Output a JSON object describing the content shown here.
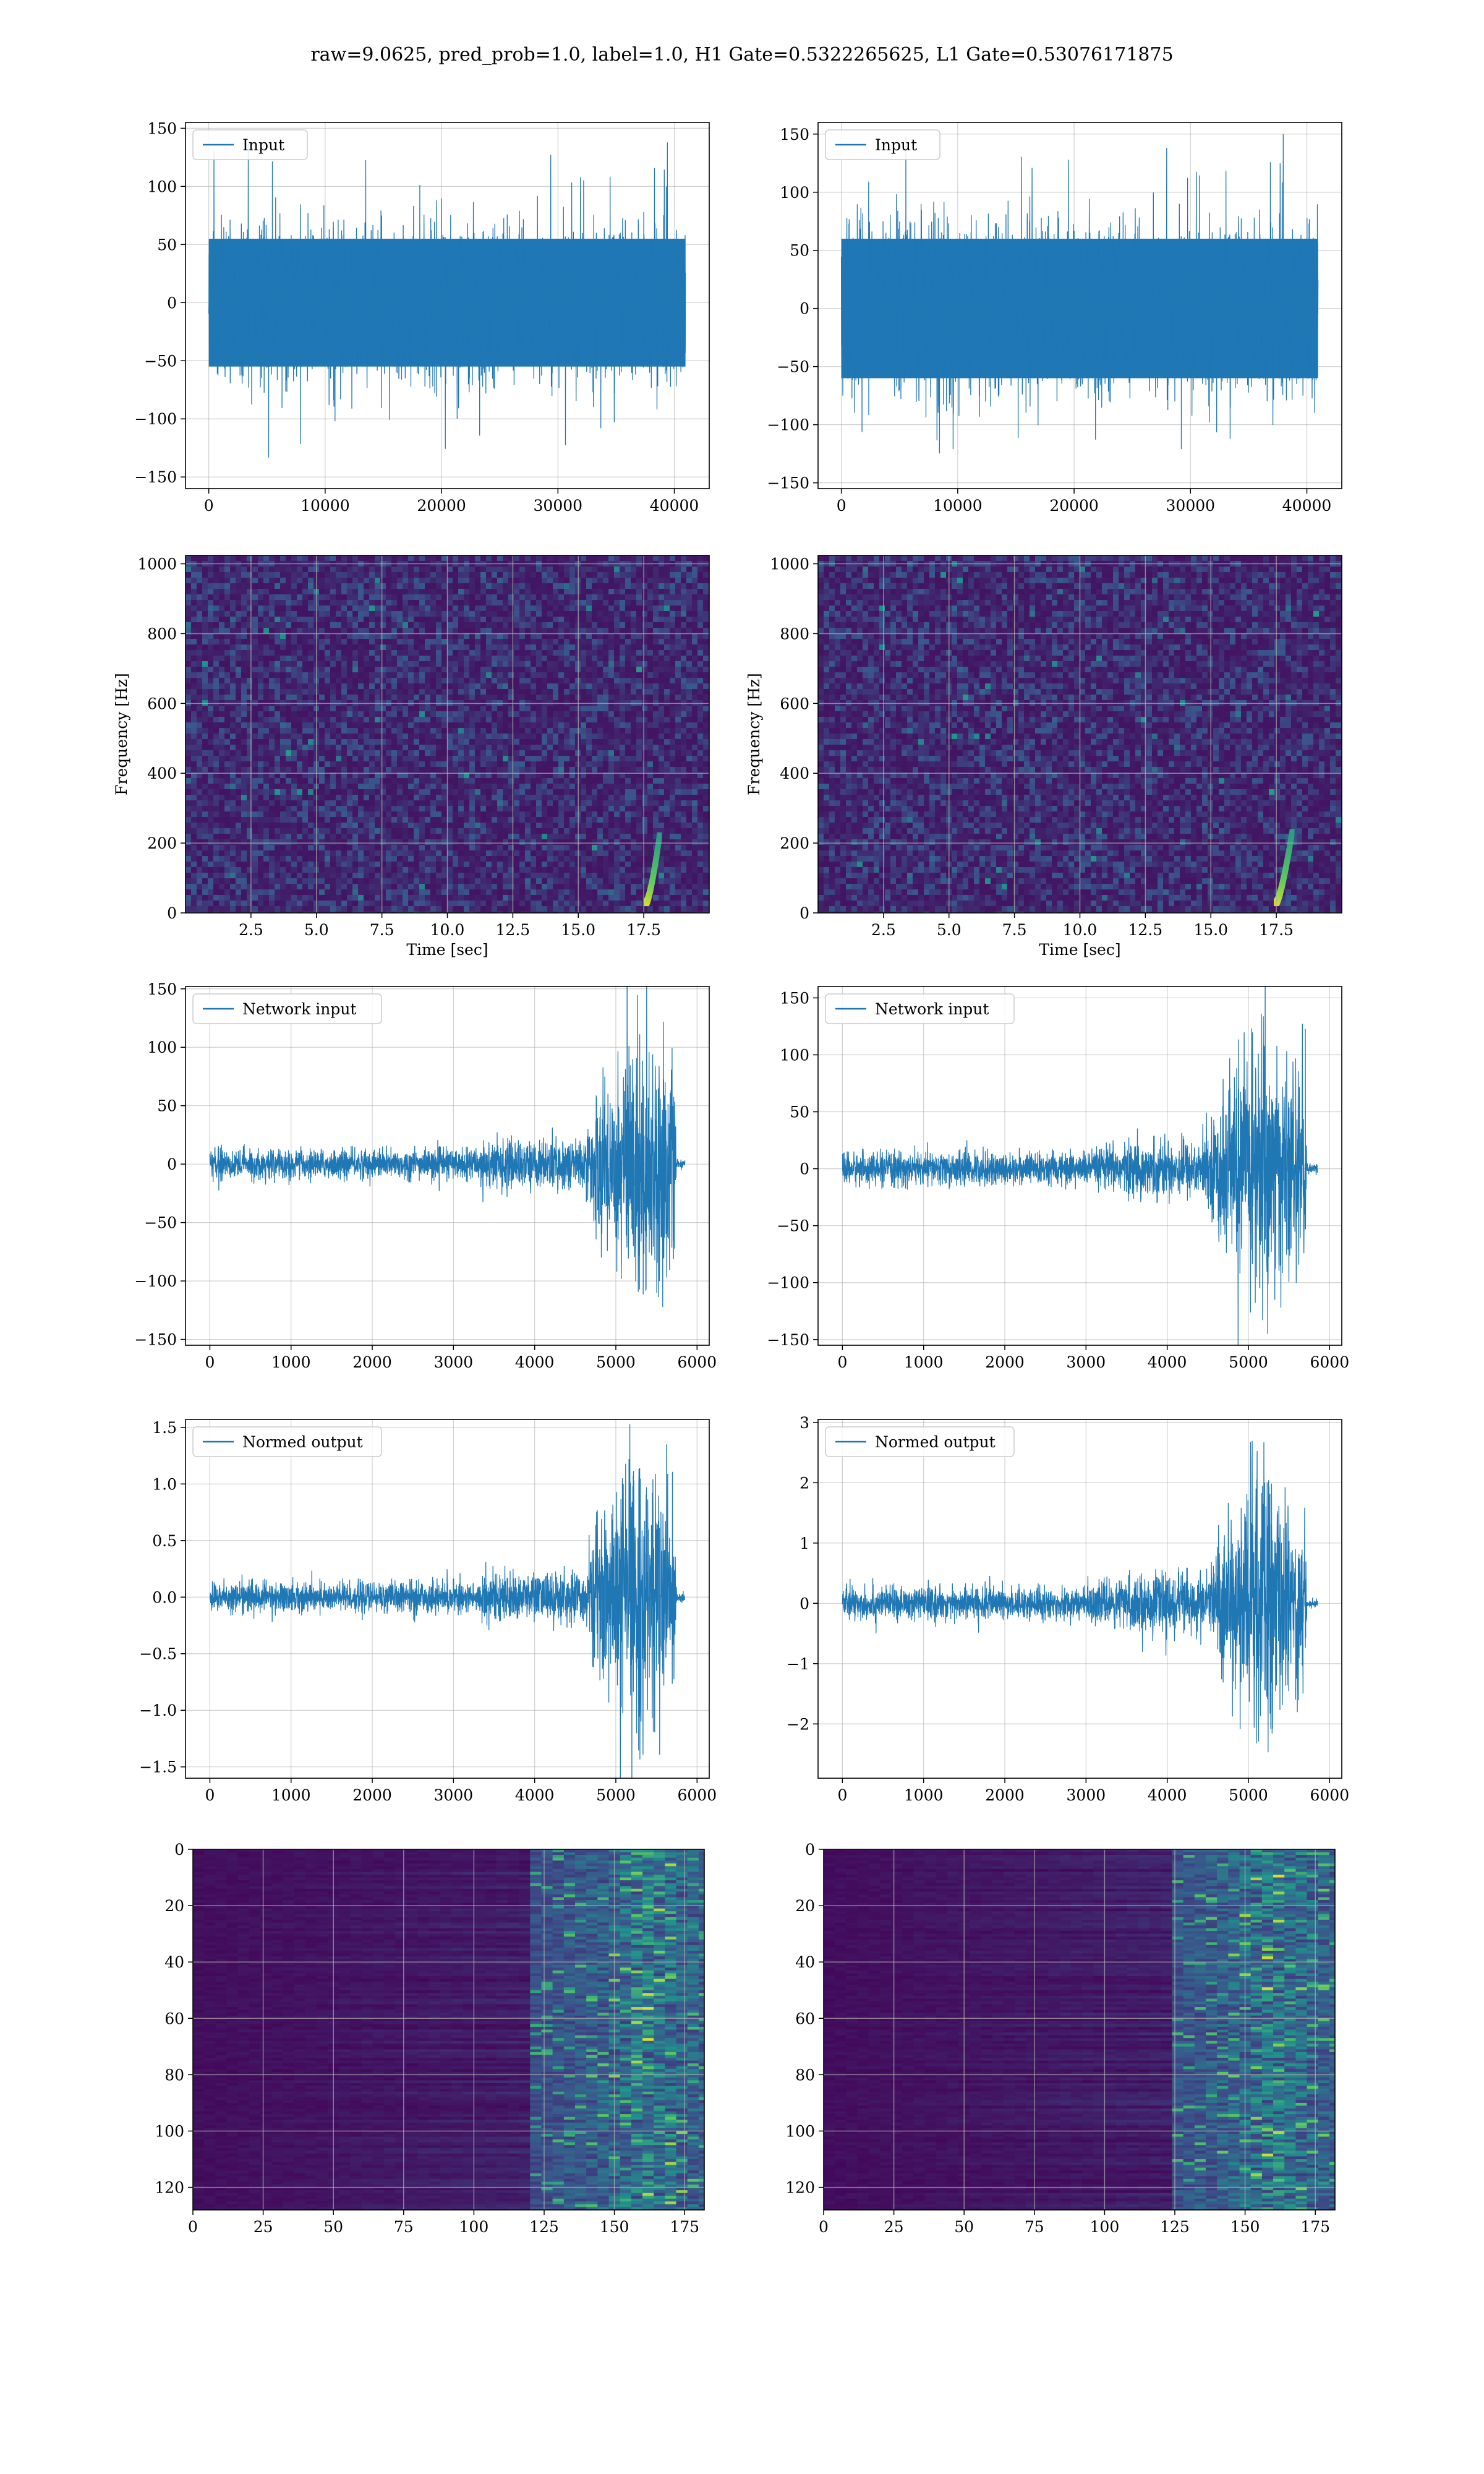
{
  "figure": {
    "title": "raw=9.0625, pred_prob=1.0, label=1.0, H1 Gate=0.5322265625, L1 Gate=0.53076171875"
  },
  "colors": {
    "line": "#1f77b4",
    "grid": "#b0b0b0",
    "viridis_low": "#440154",
    "viridis_mid": "#21918c",
    "viridis_high": "#fde725"
  },
  "chart_data": [
    {
      "id": "h1-input",
      "type": "line",
      "legend": "Input",
      "legend_loc": "upper-left",
      "xlim": [
        -2000,
        43000
      ],
      "ylim": [
        -160,
        155
      ],
      "xticks": [
        0,
        10000,
        20000,
        30000,
        40000
      ],
      "yticks": [
        -150,
        -100,
        -50,
        0,
        50,
        100,
        150
      ],
      "x": [
        0,
        40960
      ],
      "series_n": 40960,
      "band_p5": -55,
      "band_p95": 55,
      "noise_max": 138,
      "noise_min": -145,
      "xlabel": "",
      "ylabel": "",
      "grid": true
    },
    {
      "id": "l1-input",
      "type": "line",
      "legend": "Input",
      "legend_loc": "upper-left",
      "xlim": [
        -2000,
        43000
      ],
      "ylim": [
        -155,
        160
      ],
      "xticks": [
        0,
        10000,
        20000,
        30000,
        40000
      ],
      "yticks": [
        -150,
        -100,
        -50,
        0,
        50,
        100,
        150
      ],
      "x": [
        0,
        40960
      ],
      "series_n": 40960,
      "band_p5": -60,
      "band_p95": 60,
      "noise_max": 150,
      "noise_min": -143,
      "xlabel": "",
      "ylabel": "",
      "grid": true
    },
    {
      "id": "h1-spectrogram",
      "type": "heatmap",
      "colormap": "viridis",
      "xlim": [
        0,
        20
      ],
      "ylim": [
        0,
        1024
      ],
      "xticks": [
        2.5,
        5.0,
        7.5,
        10.0,
        12.5,
        15.0,
        17.5
      ],
      "xtick_labels": [
        "2.5",
        "5.0",
        "7.5",
        "10.0",
        "12.5",
        "15.0",
        "17.5"
      ],
      "yticks": [
        0,
        200,
        400,
        600,
        800,
        1000
      ],
      "xlabel": "Time [sec]",
      "ylabel": "Frequency [Hz]",
      "grid": true,
      "chirp": {
        "t_start": 17.6,
        "t_end": 18.1,
        "f_start": 30,
        "f_end": 220
      }
    },
    {
      "id": "l1-spectrogram",
      "type": "heatmap",
      "colormap": "viridis",
      "xlim": [
        0,
        20
      ],
      "ylim": [
        0,
        1024
      ],
      "xticks": [
        2.5,
        5.0,
        7.5,
        10.0,
        12.5,
        15.0,
        17.5
      ],
      "xtick_labels": [
        "2.5",
        "5.0",
        "7.5",
        "10.0",
        "12.5",
        "15.0",
        "17.5"
      ],
      "yticks": [
        0,
        200,
        400,
        600,
        800,
        1000
      ],
      "xlabel": "Time [sec]",
      "ylabel": "Frequency [Hz]",
      "grid": true,
      "chirp": {
        "t_start": 17.5,
        "t_end": 18.1,
        "f_start": 30,
        "f_end": 230
      }
    },
    {
      "id": "h1-network-input",
      "type": "line",
      "legend": "Network input",
      "legend_loc": "upper-left",
      "xlim": [
        -300,
        6150
      ],
      "ylim": [
        -155,
        152
      ],
      "xticks": [
        0,
        1000,
        2000,
        3000,
        4000,
        5000,
        6000
      ],
      "yticks": [
        -150,
        -100,
        -50,
        0,
        50,
        100,
        150
      ],
      "x": [
        0,
        5850
      ],
      "signal_end": 5750,
      "envelope": [
        [
          0,
          14
        ],
        [
          3300,
          14
        ],
        [
          3400,
          28
        ],
        [
          3500,
          22
        ],
        [
          4600,
          24
        ],
        [
          4800,
          70
        ],
        [
          5000,
          95
        ],
        [
          5200,
          140
        ],
        [
          5400,
          120
        ],
        [
          5700,
          105
        ],
        [
          5750,
          4
        ],
        [
          5850,
          4
        ]
      ],
      "xlabel": "",
      "ylabel": "",
      "grid": true
    },
    {
      "id": "l1-network-input",
      "type": "line",
      "legend": "Network input",
      "legend_loc": "upper-left",
      "xlim": [
        -300,
        6150
      ],
      "ylim": [
        -155,
        160
      ],
      "xticks": [
        0,
        1000,
        2000,
        3000,
        4000,
        5000,
        6000
      ],
      "yticks": [
        -150,
        -100,
        -50,
        0,
        50,
        100,
        150
      ],
      "x": [
        0,
        5850
      ],
      "signal_end": 5720,
      "envelope": [
        [
          0,
          16
        ],
        [
          3000,
          16
        ],
        [
          3500,
          26
        ],
        [
          4500,
          30
        ],
        [
          4700,
          80
        ],
        [
          5000,
          115
        ],
        [
          5200,
          150
        ],
        [
          5400,
          100
        ],
        [
          5700,
          95
        ],
        [
          5720,
          5
        ],
        [
          5850,
          5
        ]
      ],
      "xlabel": "",
      "ylabel": "",
      "grid": true
    },
    {
      "id": "h1-normed-output",
      "type": "line",
      "legend": "Normed output",
      "legend_loc": "upper-left",
      "xlim": [
        -300,
        6150
      ],
      "ylim": [
        -1.6,
        1.57
      ],
      "xticks": [
        0,
        1000,
        2000,
        3000,
        4000,
        5000,
        6000
      ],
      "yticks": [
        -1.5,
        -1.0,
        -0.5,
        0.0,
        0.5,
        1.0,
        1.5
      ],
      "ytick_labels": [
        "−1.5",
        "−1.0",
        "−0.5",
        "0.0",
        "0.5",
        "1.0",
        "1.5"
      ],
      "x": [
        0,
        5850
      ],
      "signal_end": 5750,
      "envelope": [
        [
          0,
          0.15
        ],
        [
          3300,
          0.15
        ],
        [
          3400,
          0.3
        ],
        [
          3500,
          0.22
        ],
        [
          4600,
          0.25
        ],
        [
          4800,
          0.75
        ],
        [
          5000,
          1.0
        ],
        [
          5200,
          1.45
        ],
        [
          5400,
          1.2
        ],
        [
          5700,
          1.05
        ],
        [
          5750,
          0.05
        ],
        [
          5850,
          0.05
        ]
      ],
      "xlabel": "",
      "ylabel": "",
      "grid": true
    },
    {
      "id": "l1-normed-output",
      "type": "line",
      "legend": "Normed output",
      "legend_loc": "upper-left",
      "xlim": [
        -300,
        6150
      ],
      "ylim": [
        -2.9,
        3.05
      ],
      "xticks": [
        0,
        1000,
        2000,
        3000,
        4000,
        5000,
        6000
      ],
      "yticks": [
        -2,
        -1,
        0,
        1,
        2,
        3
      ],
      "ytick_labels": [
        "−2",
        "−1",
        "0",
        "1",
        "2",
        "3"
      ],
      "x": [
        0,
        5850
      ],
      "signal_end": 5720,
      "envelope": [
        [
          0,
          0.3
        ],
        [
          3000,
          0.3
        ],
        [
          3500,
          0.5
        ],
        [
          4500,
          0.55
        ],
        [
          4700,
          1.5
        ],
        [
          5000,
          2.1
        ],
        [
          5200,
          2.8
        ],
        [
          5400,
          1.8
        ],
        [
          5700,
          1.7
        ],
        [
          5720,
          0.08
        ],
        [
          5850,
          0.08
        ]
      ],
      "xlabel": "",
      "ylabel": "",
      "grid": true
    },
    {
      "id": "h1-feature-map",
      "type": "heatmap",
      "colormap": "viridis",
      "xlim": [
        0,
        182
      ],
      "ylim": [
        128,
        0
      ],
      "xticks": [
        0,
        25,
        50,
        75,
        100,
        125,
        150,
        175
      ],
      "yticks": [
        0,
        20,
        40,
        60,
        80,
        100,
        120
      ],
      "rows": 128,
      "cols": 182,
      "active_from_col": 120,
      "hot_col": 160,
      "xlabel": "",
      "ylabel": "",
      "grid": true
    },
    {
      "id": "l1-feature-map",
      "type": "heatmap",
      "colormap": "viridis",
      "xlim": [
        0,
        182
      ],
      "ylim": [
        128,
        0
      ],
      "xticks": [
        0,
        25,
        50,
        75,
        100,
        125,
        150,
        175
      ],
      "yticks": [
        0,
        20,
        40,
        60,
        80,
        100,
        120
      ],
      "rows": 128,
      "cols": 182,
      "active_from_col": 122,
      "hot_col": 158,
      "xlabel": "",
      "ylabel": "",
      "grid": true
    }
  ]
}
